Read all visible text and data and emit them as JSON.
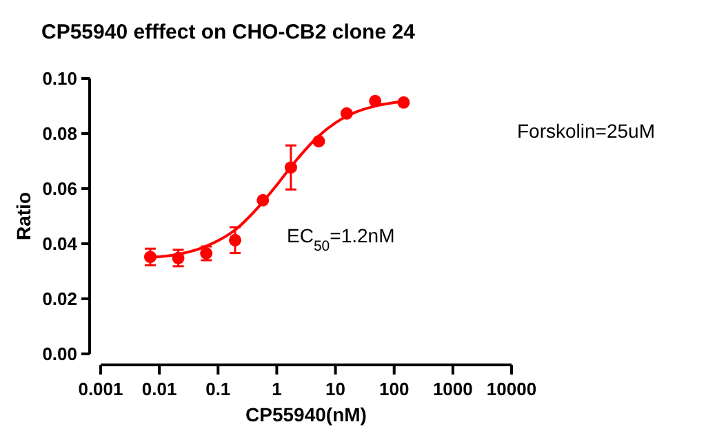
{
  "chart_data": {
    "type": "scatter",
    "title": "CP55940 efffect on CHO-CB2 clone 24",
    "xlabel": "CP55940(nM)",
    "ylabel": "Ratio",
    "log": "x",
    "xlim": [
      0.001,
      10000
    ],
    "xticks": [
      0.001,
      0.01,
      0.1,
      1,
      10,
      100,
      1000,
      10000
    ],
    "ylim": [
      0,
      0.1
    ],
    "yticks": [
      {
        "value": 0,
        "label": "0.00"
      },
      {
        "value": 0.02,
        "label": "0.02"
      },
      {
        "value": 0.04,
        "label": "0.04"
      },
      {
        "value": 0.06,
        "label": "0.06"
      },
      {
        "value": 0.08,
        "label": "0.08"
      },
      {
        "value": 0.1,
        "label": "0.10"
      }
    ],
    "grid": false,
    "series": [
      {
        "marker": "circle",
        "color": "#ff0000",
        "x": [
          0.007,
          0.021,
          0.063,
          0.195,
          0.58,
          1.74,
          5.2,
          15.5,
          47.5,
          145
        ],
        "values": [
          0.0352,
          0.0348,
          0.0365,
          0.0413,
          0.0558,
          0.0677,
          0.0772,
          0.0873,
          0.0918,
          0.0913
        ],
        "errors": [
          0.003,
          0.003,
          0.0025,
          0.0047,
          null,
          0.008,
          null,
          null,
          null,
          null
        ]
      },
      {
        "type": "line",
        "color": "#ff0000",
        "line_style": "solid",
        "x": [
          0.007,
          0.02,
          0.05,
          0.1,
          0.2,
          0.5,
          1,
          2,
          5,
          10,
          20,
          50,
          145
        ],
        "values": [
          0.035,
          0.0361,
          0.0383,
          0.0411,
          0.0452,
          0.0536,
          0.0613,
          0.0695,
          0.0788,
          0.0839,
          0.0874,
          0.0901,
          0.0917
        ]
      }
    ],
    "annotations": [
      "Forskolin=25uM",
      "EC$_{50}$=1.2nM"
    ]
  }
}
